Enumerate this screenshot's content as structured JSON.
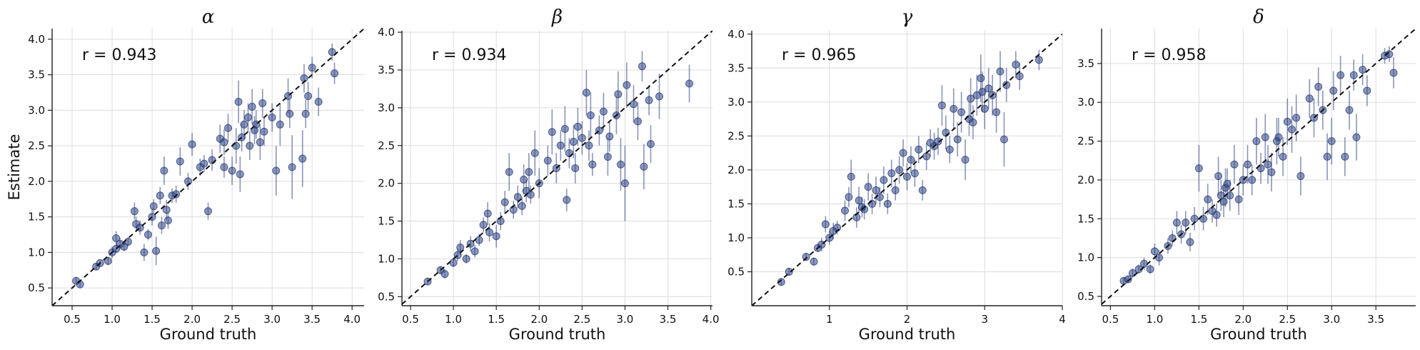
{
  "colors": {
    "point": "#2d4387",
    "errorbar": "#2a3f7f",
    "diagonal": "#111111",
    "grid": "#dcdcdc"
  },
  "chart_data": [
    {
      "type": "scatter",
      "title": "α",
      "annotation": "r = 0.943",
      "xlabel": "Ground truth",
      "ylabel": "Estimate",
      "xlim": [
        0.25,
        4.15
      ],
      "ylim": [
        0.25,
        4.15
      ],
      "xticks": [
        0.5,
        1.0,
        1.5,
        2.0,
        2.5,
        3.0,
        3.5,
        4.0
      ],
      "yticks": [
        0.5,
        1.0,
        1.5,
        2.0,
        2.5,
        3.0,
        3.5,
        4.0
      ],
      "tick_format": "1",
      "grid": true,
      "reference_line": "y = x",
      "points": [
        [
          0.55,
          0.6,
          0.05
        ],
        [
          0.6,
          0.55,
          0.04
        ],
        [
          0.8,
          0.8,
          0.05
        ],
        [
          0.85,
          0.85,
          0.04
        ],
        [
          0.95,
          0.88,
          0.06
        ],
        [
          1.0,
          1.0,
          0.08
        ],
        [
          1.05,
          1.2,
          0.1
        ],
        [
          1.05,
          1.05,
          0.06
        ],
        [
          1.1,
          1.12,
          0.08
        ],
        [
          1.15,
          1.08,
          0.06
        ],
        [
          1.2,
          1.15,
          0.06
        ],
        [
          1.28,
          1.58,
          0.12
        ],
        [
          1.3,
          1.4,
          0.1
        ],
        [
          1.35,
          1.35,
          0.1
        ],
        [
          1.4,
          1.0,
          0.12
        ],
        [
          1.45,
          1.25,
          0.08
        ],
        [
          1.5,
          1.5,
          0.12
        ],
        [
          1.52,
          1.65,
          0.1
        ],
        [
          1.55,
          1.02,
          0.2
        ],
        [
          1.6,
          1.8,
          0.12
        ],
        [
          1.62,
          1.38,
          0.12
        ],
        [
          1.65,
          2.15,
          0.2
        ],
        [
          1.68,
          1.6,
          0.14
        ],
        [
          1.7,
          1.45,
          0.12
        ],
        [
          1.75,
          1.8,
          0.1
        ],
        [
          1.8,
          1.82,
          0.12
        ],
        [
          1.85,
          2.28,
          0.2
        ],
        [
          1.95,
          2.0,
          0.12
        ],
        [
          2.0,
          2.52,
          0.16
        ],
        [
          2.1,
          2.2,
          0.12
        ],
        [
          2.15,
          2.25,
          0.12
        ],
        [
          2.2,
          1.58,
          0.12
        ],
        [
          2.25,
          2.3,
          0.15
        ],
        [
          2.35,
          2.6,
          0.2
        ],
        [
          2.4,
          2.55,
          0.18
        ],
        [
          2.4,
          2.2,
          0.15
        ],
        [
          2.45,
          2.75,
          0.2
        ],
        [
          2.5,
          2.15,
          0.2
        ],
        [
          2.55,
          2.5,
          0.25
        ],
        [
          2.58,
          3.12,
          0.3
        ],
        [
          2.6,
          2.1,
          0.25
        ],
        [
          2.62,
          2.62,
          0.2
        ],
        [
          2.65,
          2.8,
          0.2
        ],
        [
          2.7,
          2.9,
          0.2
        ],
        [
          2.72,
          2.5,
          0.2
        ],
        [
          2.75,
          3.05,
          0.25
        ],
        [
          2.78,
          2.72,
          0.2
        ],
        [
          2.8,
          2.8,
          0.2
        ],
        [
          2.85,
          2.55,
          0.25
        ],
        [
          2.88,
          3.1,
          0.2
        ],
        [
          2.9,
          2.7,
          0.2
        ],
        [
          3.0,
          2.9,
          0.2
        ],
        [
          3.05,
          2.15,
          0.35
        ],
        [
          3.1,
          2.8,
          0.3
        ],
        [
          3.2,
          3.2,
          0.25
        ],
        [
          3.22,
          2.95,
          0.2
        ],
        [
          3.25,
          2.2,
          0.45
        ],
        [
          3.38,
          2.32,
          0.4
        ],
        [
          3.4,
          3.45,
          0.2
        ],
        [
          3.42,
          2.95,
          0.2
        ],
        [
          3.45,
          3.2,
          0.2
        ],
        [
          3.5,
          3.6,
          0.15
        ],
        [
          3.58,
          3.12,
          0.2
        ],
        [
          3.75,
          3.82,
          0.12
        ],
        [
          3.78,
          3.52,
          0.15
        ]
      ]
    },
    {
      "type": "scatter",
      "title": "β",
      "annotation": "r = 0.934",
      "xlabel": "Ground truth",
      "ylabel": "",
      "xlim": [
        0.4,
        4.02
      ],
      "ylim": [
        0.38,
        4.02
      ],
      "xticks": [
        0.5,
        1.0,
        1.5,
        2.0,
        2.5,
        3.0,
        3.5,
        4.0
      ],
      "yticks": [
        0.5,
        1.0,
        1.5,
        2.0,
        2.5,
        3.0,
        3.5,
        4.0
      ],
      "tick_format": "1",
      "grid": true,
      "reference_line": "y = x",
      "points": [
        [
          0.7,
          0.7,
          0.04
        ],
        [
          0.85,
          0.85,
          0.05
        ],
        [
          0.9,
          0.8,
          0.06
        ],
        [
          1.0,
          0.95,
          0.06
        ],
        [
          1.05,
          1.05,
          0.08
        ],
        [
          1.08,
          1.15,
          0.1
        ],
        [
          1.15,
          1.0,
          0.06
        ],
        [
          1.2,
          1.2,
          0.1
        ],
        [
          1.25,
          1.1,
          0.08
        ],
        [
          1.3,
          1.25,
          0.08
        ],
        [
          1.35,
          1.45,
          0.1
        ],
        [
          1.4,
          1.6,
          0.15
        ],
        [
          1.42,
          1.35,
          0.12
        ],
        [
          1.5,
          1.3,
          0.15
        ],
        [
          1.55,
          1.5,
          0.12
        ],
        [
          1.6,
          1.75,
          0.15
        ],
        [
          1.65,
          2.15,
          0.25
        ],
        [
          1.7,
          1.65,
          0.12
        ],
        [
          1.75,
          1.82,
          0.15
        ],
        [
          1.8,
          1.7,
          0.12
        ],
        [
          1.82,
          2.05,
          0.2
        ],
        [
          1.85,
          1.9,
          0.15
        ],
        [
          1.88,
          2.15,
          0.25
        ],
        [
          1.9,
          1.85,
          0.12
        ],
        [
          1.95,
          2.4,
          0.3
        ],
        [
          2.0,
          2.0,
          0.2
        ],
        [
          2.1,
          2.3,
          0.2
        ],
        [
          2.15,
          2.68,
          0.3
        ],
        [
          2.2,
          2.2,
          0.2
        ],
        [
          2.25,
          2.5,
          0.2
        ],
        [
          2.3,
          2.72,
          0.3
        ],
        [
          2.32,
          1.78,
          0.15
        ],
        [
          2.35,
          2.4,
          0.2
        ],
        [
          2.4,
          2.55,
          0.22
        ],
        [
          2.42,
          2.2,
          0.2
        ],
        [
          2.45,
          2.75,
          0.25
        ],
        [
          2.5,
          2.6,
          0.22
        ],
        [
          2.55,
          3.2,
          0.3
        ],
        [
          2.58,
          2.5,
          0.2
        ],
        [
          2.6,
          2.9,
          0.3
        ],
        [
          2.62,
          2.25,
          0.15
        ],
        [
          2.7,
          2.7,
          0.2
        ],
        [
          2.75,
          2.95,
          0.25
        ],
        [
          2.8,
          2.35,
          0.25
        ],
        [
          2.82,
          2.62,
          0.2
        ],
        [
          2.9,
          2.9,
          0.25
        ],
        [
          2.92,
          3.18,
          0.3
        ],
        [
          2.95,
          2.25,
          0.35
        ],
        [
          3.0,
          2.0,
          0.5
        ],
        [
          3.02,
          3.3,
          0.3
        ],
        [
          3.1,
          3.05,
          0.25
        ],
        [
          3.15,
          2.82,
          0.25
        ],
        [
          3.2,
          3.55,
          0.2
        ],
        [
          3.22,
          2.22,
          0.3
        ],
        [
          3.28,
          3.1,
          0.2
        ],
        [
          3.3,
          2.52,
          0.25
        ],
        [
          3.4,
          3.15,
          0.3
        ],
        [
          3.75,
          3.32,
          0.25
        ]
      ]
    },
    {
      "type": "scatter",
      "title": "γ",
      "annotation": "r = 0.965",
      "xlabel": "Ground truth",
      "ylabel": "",
      "xlim": [
        0.0,
        4.0
      ],
      "ylim": [
        0.0,
        4.05
      ],
      "xticks": [
        1,
        2,
        3,
        4
      ],
      "yticks": [
        0.5,
        1.0,
        1.5,
        2.0,
        2.5,
        3.0,
        3.5,
        4.0
      ],
      "tick_format": "x0y1",
      "grid": true,
      "reference_line": "y = x",
      "points": [
        [
          0.38,
          0.35,
          0.05
        ],
        [
          0.48,
          0.5,
          0.06
        ],
        [
          0.7,
          0.72,
          0.06
        ],
        [
          0.8,
          0.65,
          0.06
        ],
        [
          0.85,
          0.85,
          0.06
        ],
        [
          0.9,
          0.9,
          0.1
        ],
        [
          0.95,
          1.2,
          0.12
        ],
        [
          1.0,
          1.0,
          0.1
        ],
        [
          1.05,
          1.1,
          0.12
        ],
        [
          1.1,
          1.15,
          0.1
        ],
        [
          1.2,
          1.4,
          0.15
        ],
        [
          1.25,
          1.6,
          0.15
        ],
        [
          1.28,
          1.9,
          0.25
        ],
        [
          1.35,
          1.3,
          0.15
        ],
        [
          1.38,
          1.55,
          0.2
        ],
        [
          1.42,
          1.45,
          0.15
        ],
        [
          1.45,
          1.42,
          0.15
        ],
        [
          1.5,
          1.75,
          0.2
        ],
        [
          1.55,
          1.5,
          0.15
        ],
        [
          1.6,
          1.7,
          0.2
        ],
        [
          1.65,
          1.6,
          0.15
        ],
        [
          1.7,
          1.85,
          0.2
        ],
        [
          1.75,
          1.5,
          0.15
        ],
        [
          1.8,
          1.95,
          0.2
        ],
        [
          1.85,
          1.7,
          0.15
        ],
        [
          1.9,
          2.0,
          0.2
        ],
        [
          1.95,
          2.25,
          0.2
        ],
        [
          2.0,
          1.9,
          0.2
        ],
        [
          2.05,
          2.15,
          0.2
        ],
        [
          2.1,
          1.95,
          0.2
        ],
        [
          2.15,
          2.3,
          0.2
        ],
        [
          2.2,
          1.7,
          0.15
        ],
        [
          2.25,
          2.2,
          0.2
        ],
        [
          2.3,
          2.4,
          0.2
        ],
        [
          2.35,
          2.35,
          0.2
        ],
        [
          2.4,
          2.42,
          0.2
        ],
        [
          2.45,
          2.95,
          0.3
        ],
        [
          2.5,
          2.55,
          0.25
        ],
        [
          2.55,
          2.3,
          0.2
        ],
        [
          2.6,
          2.9,
          0.3
        ],
        [
          2.65,
          2.45,
          0.25
        ],
        [
          2.7,
          2.85,
          0.3
        ],
        [
          2.75,
          2.15,
          0.3
        ],
        [
          2.8,
          2.75,
          0.25
        ],
        [
          2.82,
          3.05,
          0.3
        ],
        [
          2.85,
          2.7,
          0.25
        ],
        [
          2.9,
          3.1,
          0.3
        ],
        [
          2.95,
          3.35,
          0.35
        ],
        [
          2.97,
          3.15,
          0.3
        ],
        [
          3.0,
          2.9,
          0.3
        ],
        [
          3.05,
          3.2,
          0.3
        ],
        [
          3.1,
          3.1,
          0.3
        ],
        [
          3.15,
          2.85,
          0.3
        ],
        [
          3.2,
          3.45,
          0.3
        ],
        [
          3.25,
          2.45,
          0.4
        ],
        [
          3.28,
          3.25,
          0.25
        ],
        [
          3.4,
          3.55,
          0.2
        ],
        [
          3.45,
          3.38,
          0.2
        ],
        [
          3.7,
          3.62,
          0.15
        ]
      ]
    },
    {
      "type": "scatter",
      "title": "δ",
      "annotation": "r = 0.958",
      "xlabel": "Ground truth",
      "ylabel": "",
      "xlim": [
        0.4,
        3.95
      ],
      "ylim": [
        0.38,
        3.95
      ],
      "xticks": [
        0.5,
        1.0,
        1.5,
        2.0,
        2.5,
        3.0,
        3.5
      ],
      "yticks": [
        0.5,
        1.0,
        1.5,
        2.0,
        2.5,
        3.0,
        3.5
      ],
      "tick_format": "1",
      "grid": true,
      "reference_line": "y = x",
      "points": [
        [
          0.65,
          0.7,
          0.05
        ],
        [
          0.7,
          0.72,
          0.05
        ],
        [
          0.75,
          0.8,
          0.06
        ],
        [
          0.82,
          0.85,
          0.06
        ],
        [
          0.88,
          0.92,
          0.08
        ],
        [
          0.95,
          0.85,
          0.06
        ],
        [
          1.0,
          1.08,
          0.1
        ],
        [
          1.05,
          1.0,
          0.1
        ],
        [
          1.15,
          1.15,
          0.1
        ],
        [
          1.2,
          1.25,
          0.1
        ],
        [
          1.25,
          1.45,
          0.15
        ],
        [
          1.3,
          1.3,
          0.12
        ],
        [
          1.35,
          1.45,
          0.15
        ],
        [
          1.4,
          1.2,
          0.12
        ],
        [
          1.45,
          1.5,
          0.15
        ],
        [
          1.5,
          2.15,
          0.3
        ],
        [
          1.55,
          1.5,
          0.15
        ],
        [
          1.6,
          1.75,
          0.2
        ],
        [
          1.65,
          1.6,
          0.15
        ],
        [
          1.7,
          1.55,
          0.15
        ],
        [
          1.72,
          2.05,
          0.25
        ],
        [
          1.75,
          1.8,
          0.2
        ],
        [
          1.78,
          1.72,
          0.2
        ],
        [
          1.8,
          1.9,
          0.25
        ],
        [
          1.82,
          1.95,
          0.2
        ],
        [
          1.85,
          1.8,
          0.2
        ],
        [
          1.9,
          2.2,
          0.25
        ],
        [
          1.95,
          1.75,
          0.2
        ],
        [
          2.0,
          2.0,
          0.2
        ],
        [
          2.05,
          2.2,
          0.25
        ],
        [
          2.1,
          2.0,
          0.2
        ],
        [
          2.15,
          2.5,
          0.3
        ],
        [
          2.2,
          2.15,
          0.2
        ],
        [
          2.25,
          2.55,
          0.3
        ],
        [
          2.28,
          2.2,
          0.25
        ],
        [
          2.32,
          2.1,
          0.25
        ],
        [
          2.38,
          2.5,
          0.3
        ],
        [
          2.4,
          2.55,
          0.25
        ],
        [
          2.45,
          2.3,
          0.25
        ],
        [
          2.5,
          2.75,
          0.3
        ],
        [
          2.55,
          2.65,
          0.3
        ],
        [
          2.6,
          2.8,
          0.3
        ],
        [
          2.65,
          2.05,
          0.25
        ],
        [
          2.75,
          3.05,
          0.25
        ],
        [
          2.8,
          2.8,
          0.25
        ],
        [
          2.85,
          3.2,
          0.25
        ],
        [
          2.9,
          2.9,
          0.25
        ],
        [
          2.95,
          2.3,
          0.3
        ],
        [
          3.0,
          2.5,
          0.3
        ],
        [
          3.02,
          3.15,
          0.25
        ],
        [
          3.1,
          3.35,
          0.25
        ],
        [
          3.15,
          2.3,
          0.25
        ],
        [
          3.2,
          2.9,
          0.25
        ],
        [
          3.25,
          3.35,
          0.2
        ],
        [
          3.28,
          2.55,
          0.3
        ],
        [
          3.35,
          3.42,
          0.2
        ],
        [
          3.4,
          3.15,
          0.2
        ],
        [
          3.6,
          3.6,
          0.1
        ],
        [
          3.65,
          3.62,
          0.1
        ],
        [
          3.7,
          3.38,
          0.2
        ]
      ]
    }
  ]
}
